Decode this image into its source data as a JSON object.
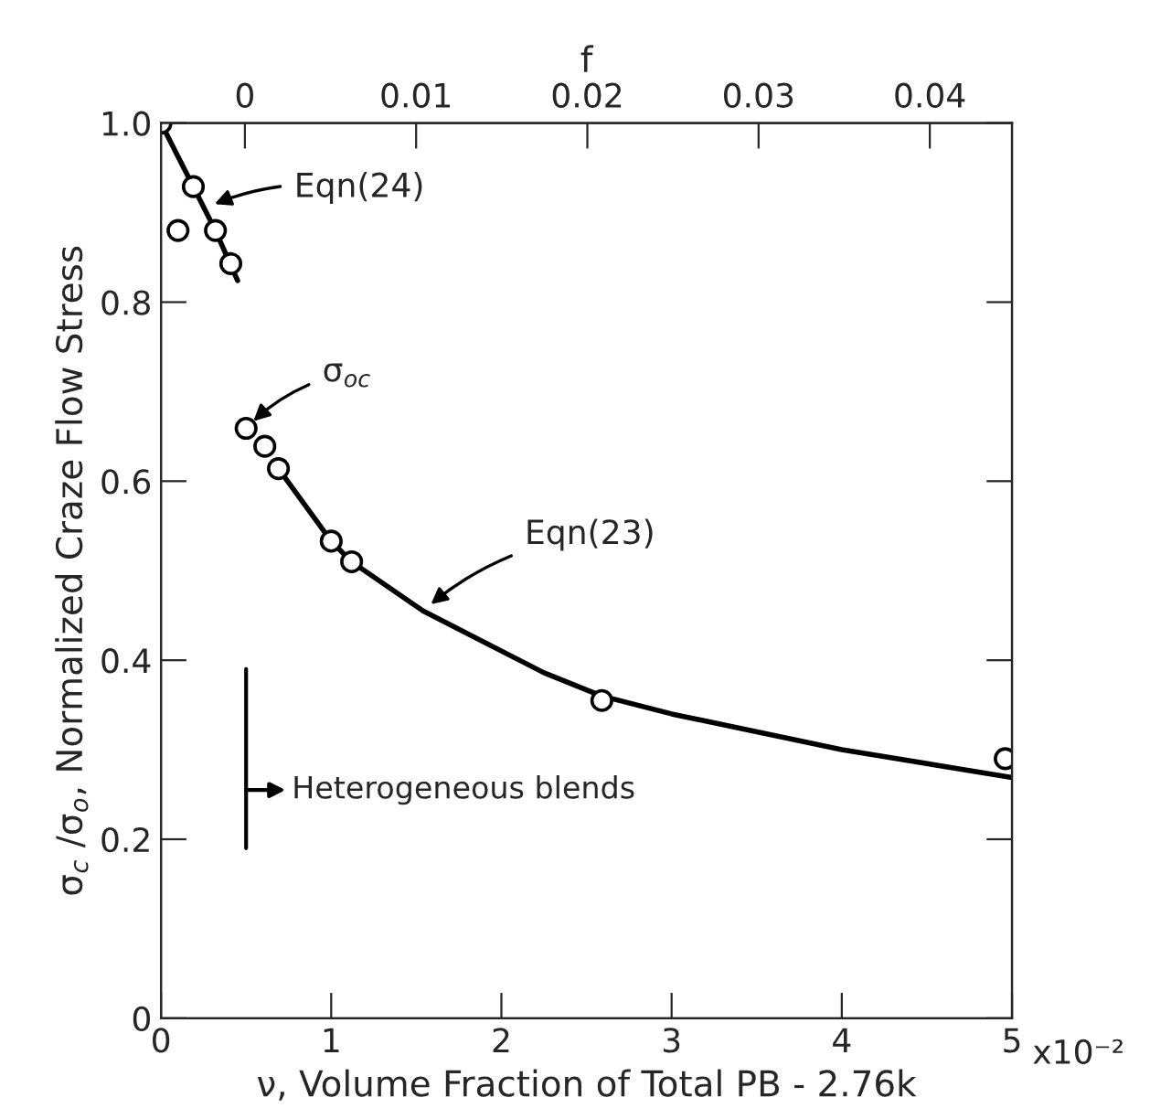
{
  "chart_data": {
    "type": "scatter",
    "xlabel": "ν, Volume Fraction of Total PB - 2.76k",
    "ylabel": "σ$_{c}$ /σ$_{o}$, Normalized Craze Flow Stress",
    "x2label": "f",
    "xlim": [
      0,
      5
    ],
    "xticks": [
      0,
      1,
      2,
      3,
      4,
      5
    ],
    "x2lim": [
      -0.0049,
      0.0448
    ],
    "x2ticks": [
      0,
      0.01,
      0.02,
      0.03,
      0.04
    ],
    "ylim": [
      0,
      1
    ],
    "yticks": [
      0,
      {
        "value": 0.2,
        "label": "0.2"
      },
      {
        "value": 0.4,
        "label": "0.4"
      },
      {
        "value": 0.6,
        "label": "0.6"
      },
      {
        "value": 0.8,
        "label": "0.8"
      },
      {
        "value": 1.0,
        "label": "1.0"
      }
    ],
    "grid": false,
    "legend": false,
    "series": [
      {
        "marker": "circle",
        "color": "#000000",
        "x": [
          0,
          0.1,
          0.19,
          0.32,
          0.41,
          0.5,
          0.61,
          0.69,
          1.0,
          1.12,
          2.59,
          4.96
        ],
        "values": [
          1.0,
          0.88,
          0.929,
          0.88,
          0.843,
          0.659,
          0.639,
          0.614,
          0.533,
          0.51,
          0.355,
          0.29
        ]
      },
      {
        "type": "line",
        "marker": "none",
        "line_style": "solid",
        "color": "#000000",
        "x": [
          0,
          0.19,
          0.32,
          0.45
        ],
        "values": [
          1.0,
          0.929,
          0.88,
          0.824
        ]
      },
      {
        "type": "line",
        "marker": "none",
        "line_style": "solid",
        "color": "#000000",
        "x": [
          0.69,
          1.0,
          1.12,
          1.54,
          2.25,
          2.59,
          3.0,
          4.0,
          5.0
        ],
        "values": [
          0.614,
          0.533,
          0.51,
          0.455,
          0.386,
          0.36,
          0.34,
          0.3,
          0.269
        ]
      }
    ],
    "ref_lines": [
      {
        "axis": "x",
        "value": 0.5,
        "label": "Heterogeneous blends",
        "color": "#000000",
        "line_style": "solid"
      }
    ],
    "annotations": [
      {
        "text": "Eqn(24)",
        "x": 0.26,
        "y": 0.905
      },
      {
        "text": "σ$_{oc}$",
        "x": 0.5,
        "y": 0.659
      },
      {
        "text": "Eqn(23)",
        "x": 1.54,
        "y": 0.455
      },
      "x10⁻²"
    ]
  }
}
